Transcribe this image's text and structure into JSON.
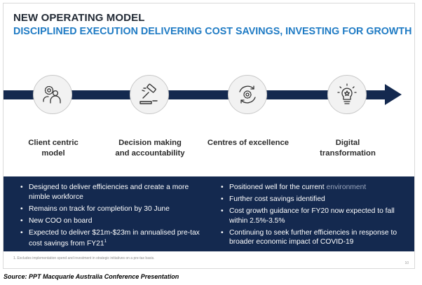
{
  "header": {
    "title": "NEW OPERATING MODEL",
    "subtitle": "DISCIPLINED EXECUTION DELIVERING COST SAVINGS, INVESTING FOR GROWTH"
  },
  "stages": [
    {
      "icon": "client-people-gear-icon",
      "label_line1": "Client centric",
      "label_line2": "model"
    },
    {
      "icon": "gavel-icon",
      "label_line1": "Decision making",
      "label_line2": "and accountability"
    },
    {
      "icon": "gear-cycle-icon",
      "label_line1": "Centres of excellence",
      "label_line2": ""
    },
    {
      "icon": "lightbulb-icon",
      "label_line1": "Digital",
      "label_line2": "transformation"
    }
  ],
  "panel": {
    "left_bullets": [
      "Designed to deliver efficiencies and create a more nimble workforce",
      "Remains on track for completion by 30 June",
      "New COO on board",
      "Expected to deliver $21m-$23m in annualised pre-tax cost savings from FY21"
    ],
    "left_last_superscript": "1",
    "right_bullets": [
      "Positioned well for the current",
      "Further cost savings identified",
      "Cost growth guidance for FY20 now expected to fall within 2.5%-3.5%",
      "Continuing to seek further efficiencies in response to broader economic impact of COVID-19"
    ],
    "right_first_suffix": "environment"
  },
  "footnote": "1.  Excludes implementation spend and investment in strategic initiatives on a pre-tax basis.",
  "page_number": "10",
  "source": "Source: PPT Macquarie Australia Conference Presentation",
  "colors": {
    "navy": "#14294f",
    "accent_blue": "#1f7bc4",
    "dark_text": "#222a35"
  }
}
